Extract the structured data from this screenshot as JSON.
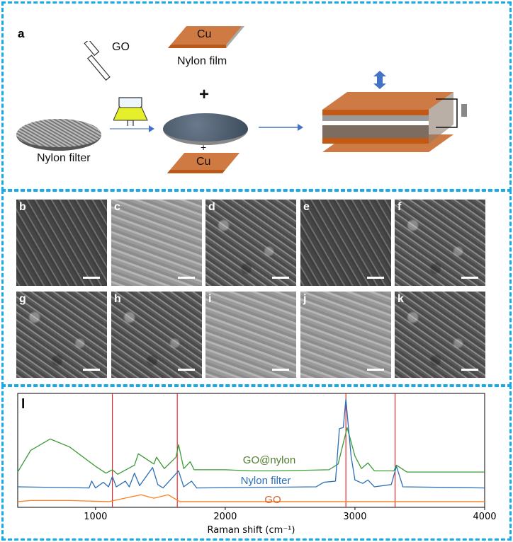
{
  "panel_a": {
    "label": "a",
    "go": "GO",
    "cu_top": "Cu",
    "nylon_film": "Nylon film",
    "plus_big": "+",
    "plus_small": "+",
    "cu_bottom": "Cu",
    "nylon_filter": "Nylon filter"
  },
  "sem_panels": [
    {
      "label": "b"
    },
    {
      "label": "c"
    },
    {
      "label": "d"
    },
    {
      "label": "e"
    },
    {
      "label": "f"
    },
    {
      "label": "g"
    },
    {
      "label": "h"
    },
    {
      "label": "i"
    },
    {
      "label": "j"
    },
    {
      "label": "k"
    }
  ],
  "chart_data": {
    "type": "line",
    "panel_label": "l",
    "xlabel": "Raman shift (cm⁻¹)",
    "ylabel": "",
    "xlim": [
      400,
      4000
    ],
    "ylim": [
      0,
      1
    ],
    "xticks": [
      1000,
      2000,
      3000,
      4000
    ],
    "reference_lines_x": [
      1130,
      1630,
      2930,
      3310
    ],
    "reference_line_color": "#e8000b",
    "series": [
      {
        "name": "GO@nylon",
        "color": "#3a9a35",
        "label_color": "#4f7f2c",
        "x": [
          400,
          500,
          650,
          800,
          1000,
          1080,
          1130,
          1170,
          1300,
          1330,
          1450,
          1470,
          1530,
          1620,
          1640,
          1680,
          1730,
          1760,
          2000,
          2200,
          2400,
          2800,
          2870,
          2940,
          3000,
          3050,
          3100,
          3150,
          3300,
          3320,
          3400,
          4000
        ],
        "y": [
          0.31,
          0.5,
          0.6,
          0.53,
          0.36,
          0.3,
          0.33,
          0.29,
          0.37,
          0.47,
          0.38,
          0.44,
          0.34,
          0.44,
          0.55,
          0.34,
          0.4,
          0.33,
          0.33,
          0.32,
          0.32,
          0.33,
          0.38,
          0.7,
          0.45,
          0.34,
          0.39,
          0.32,
          0.32,
          0.37,
          0.31,
          0.31
        ]
      },
      {
        "name": "Nylon filter",
        "color": "#2a6fb5",
        "label_color": "#2a6fb5",
        "x": [
          400,
          950,
          970,
          1000,
          1060,
          1100,
          1130,
          1160,
          1230,
          1260,
          1300,
          1340,
          1440,
          1480,
          1520,
          1640,
          1680,
          1740,
          1780,
          2700,
          2760,
          2850,
          2880,
          2910,
          2930,
          2970,
          3000,
          3060,
          3100,
          3150,
          3280,
          3320,
          3370,
          4000
        ],
        "y": [
          0.18,
          0.17,
          0.23,
          0.17,
          0.22,
          0.18,
          0.27,
          0.18,
          0.23,
          0.18,
          0.3,
          0.19,
          0.35,
          0.2,
          0.17,
          0.32,
          0.18,
          0.23,
          0.17,
          0.18,
          0.22,
          0.23,
          0.69,
          0.7,
          0.95,
          0.45,
          0.24,
          0.21,
          0.24,
          0.18,
          0.2,
          0.36,
          0.18,
          0.17
        ]
      },
      {
        "name": "GO",
        "color": "#ff7f1e",
        "label_color": "#d0622a",
        "x": [
          400,
          500,
          800,
          1100,
          1350,
          1450,
          1560,
          1650,
          2000,
          4000
        ],
        "y": [
          0.05,
          0.06,
          0.06,
          0.05,
          0.11,
          0.08,
          0.11,
          0.05,
          0.05,
          0.05
        ]
      }
    ]
  }
}
